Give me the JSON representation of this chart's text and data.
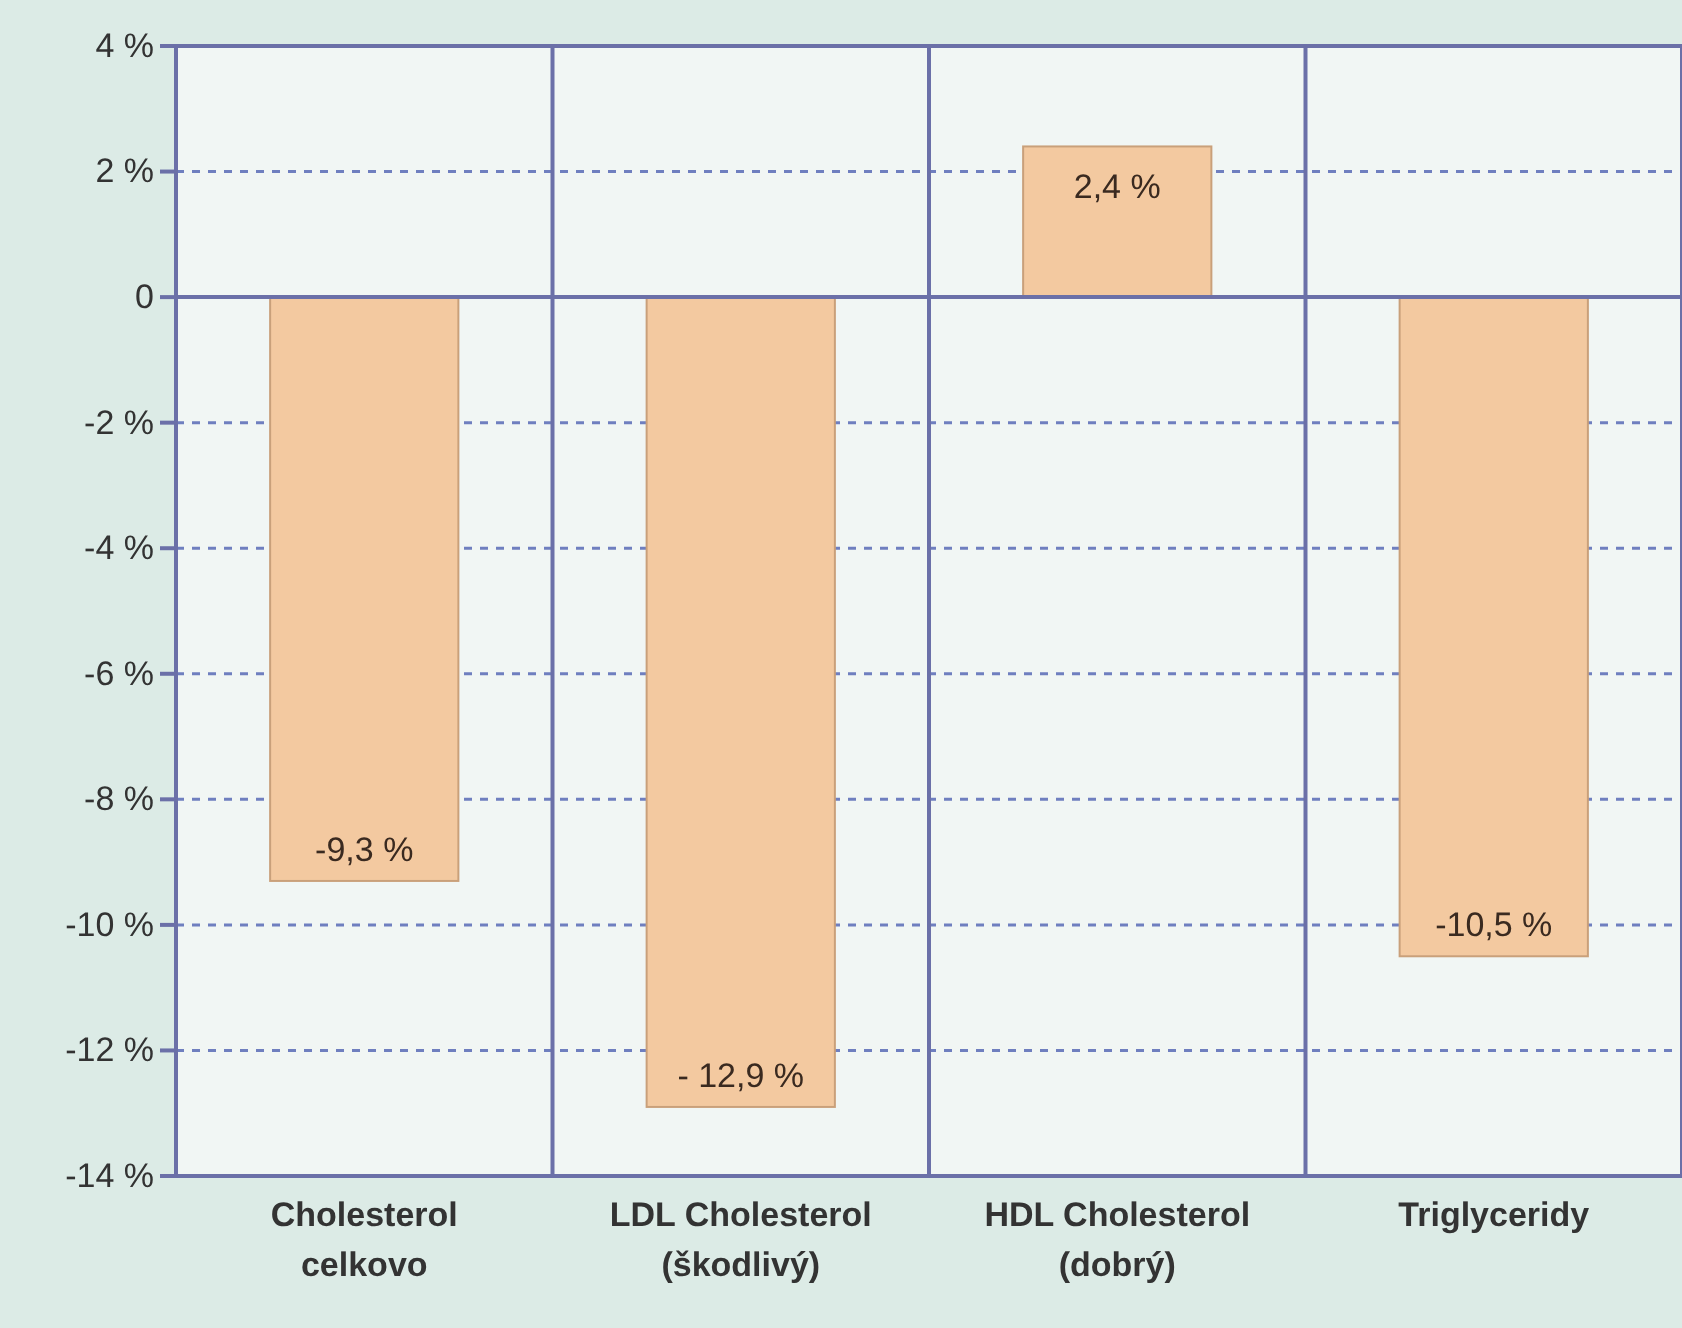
{
  "chart_data": {
    "type": "bar",
    "categories": [
      "Cholesterol celkovo",
      "LDL Cholesterol (škodlivý)",
      "HDL Cholesterol (dobrý)",
      "Triglyceridy"
    ],
    "values": [
      -9.3,
      -12.9,
      2.4,
      -10.5
    ],
    "value_labels": [
      "-9,3 %",
      "- 12,9 %",
      "2,4 %",
      "-10,5 %"
    ],
    "color": "#f3c9a0",
    "ylim": [
      -14,
      4
    ],
    "yticks": [
      {
        "value": 4,
        "label": "4 %"
      },
      {
        "value": 2,
        "label": "2 %"
      },
      0,
      {
        "value": -2,
        "label": "-2 %"
      },
      {
        "value": -4,
        "label": "-4 %"
      },
      {
        "value": -6,
        "label": "-6 %"
      },
      {
        "value": -8,
        "label": "-8 %"
      },
      {
        "value": -10,
        "label": "-10 %"
      },
      {
        "value": -12,
        "label": "-12 %"
      },
      {
        "value": -14,
        "label": "-14 %"
      }
    ],
    "grid": "y"
  }
}
